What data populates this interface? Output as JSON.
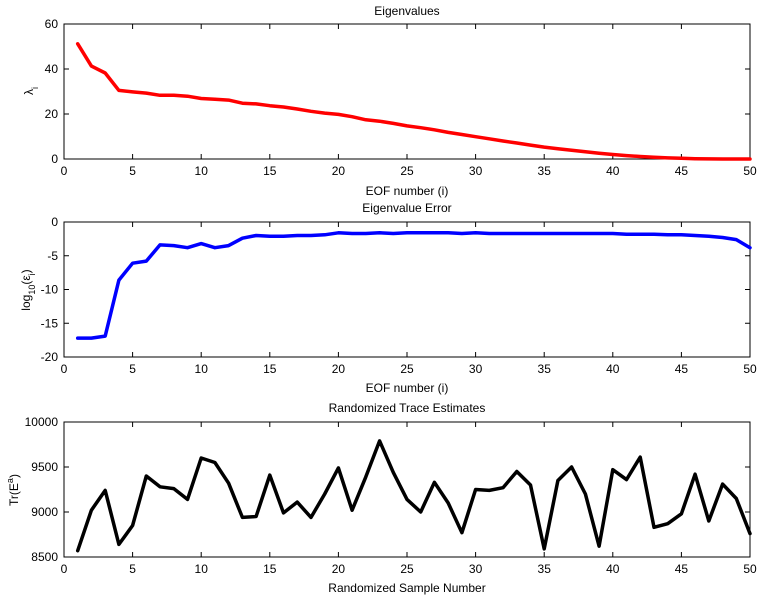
{
  "chart_data": [
    {
      "type": "line",
      "title": "Eigenvalues",
      "xlabel": "EOF number (i)",
      "ylabel": {
        "main": "λ",
        "sub": "i",
        "sup": ""
      },
      "xlim": [
        0,
        50
      ],
      "ylim": [
        0,
        60
      ],
      "xticks": [
        0,
        5,
        10,
        15,
        20,
        25,
        30,
        35,
        40,
        45,
        50
      ],
      "yticks": [
        0,
        20,
        40,
        60
      ],
      "grid": false,
      "series": [
        {
          "color": "#ff0000",
          "x": [
            1,
            2,
            3,
            4,
            5,
            6,
            7,
            8,
            9,
            10,
            11,
            12,
            13,
            14,
            15,
            16,
            17,
            18,
            19,
            20,
            21,
            22,
            23,
            24,
            25,
            26,
            27,
            28,
            29,
            30,
            31,
            32,
            33,
            34,
            35,
            36,
            37,
            38,
            39,
            40,
            41,
            42,
            43,
            44,
            45,
            46,
            47,
            48,
            49,
            50
          ],
          "values": [
            51.2,
            41.3,
            38.2,
            30.5,
            29.8,
            29.3,
            28.3,
            28.3,
            27.9,
            26.9,
            26.6,
            26.2,
            24.8,
            24.5,
            23.7,
            23.1,
            22.2,
            21.2,
            20.4,
            19.8,
            18.8,
            17.4,
            16.8,
            15.8,
            14.7,
            13.9,
            13.0,
            11.8,
            10.9,
            9.9,
            9.0,
            8.0,
            7.1,
            6.2,
            5.3,
            4.6,
            3.9,
            3.2,
            2.6,
            2.0,
            1.5,
            1.1,
            0.8,
            0.5,
            0.3,
            0.15,
            0.05,
            0.02,
            0.01,
            0.0
          ]
        }
      ]
    },
    {
      "type": "line",
      "title": "Eigenvalue Error",
      "xlabel": "EOF number (i)",
      "ylabel": {
        "main": "log",
        "sub": "10",
        "rest": "(ε",
        "sub2": "i",
        "close": ")"
      },
      "xlim": [
        0,
        50
      ],
      "ylim": [
        -20,
        0
      ],
      "xticks": [
        0,
        5,
        10,
        15,
        20,
        25,
        30,
        35,
        40,
        45,
        50
      ],
      "yticks": [
        -20,
        -15,
        -10,
        -5,
        0
      ],
      "grid": false,
      "series": [
        {
          "color": "#0000ff",
          "x": [
            1,
            2,
            3,
            4,
            5,
            6,
            7,
            8,
            9,
            10,
            11,
            12,
            13,
            14,
            15,
            16,
            17,
            18,
            19,
            20,
            21,
            22,
            23,
            24,
            25,
            26,
            27,
            28,
            29,
            30,
            31,
            32,
            33,
            34,
            35,
            36,
            37,
            38,
            39,
            40,
            41,
            42,
            43,
            44,
            45,
            46,
            47,
            48,
            49,
            50
          ],
          "values": [
            -17.2,
            -17.2,
            -16.9,
            -8.6,
            -6.1,
            -5.8,
            -3.4,
            -3.5,
            -3.8,
            -3.2,
            -3.8,
            -3.5,
            -2.4,
            -2.0,
            -2.1,
            -2.1,
            -2.0,
            -2.0,
            -1.9,
            -1.6,
            -1.7,
            -1.7,
            -1.6,
            -1.7,
            -1.6,
            -1.6,
            -1.6,
            -1.6,
            -1.7,
            -1.6,
            -1.7,
            -1.7,
            -1.7,
            -1.7,
            -1.7,
            -1.7,
            -1.7,
            -1.7,
            -1.7,
            -1.7,
            -1.8,
            -1.8,
            -1.8,
            -1.9,
            -1.9,
            -2.0,
            -2.1,
            -2.3,
            -2.6,
            -3.8
          ]
        }
      ]
    },
    {
      "type": "line",
      "title": "Randomized Trace Estimates",
      "xlabel": "Randomized Sample Number",
      "ylabel": {
        "main": "Tr(E",
        "sup": "a",
        "close": ")"
      },
      "xlim": [
        0,
        50
      ],
      "ylim": [
        8500,
        10000
      ],
      "xticks": [
        0,
        5,
        10,
        15,
        20,
        25,
        30,
        35,
        40,
        45,
        50
      ],
      "yticks": [
        8500,
        9000,
        9500,
        10000
      ],
      "grid": false,
      "series": [
        {
          "color": "#000000",
          "x": [
            1,
            2,
            3,
            4,
            5,
            6,
            7,
            8,
            9,
            10,
            11,
            12,
            13,
            14,
            15,
            16,
            17,
            18,
            19,
            20,
            21,
            22,
            23,
            24,
            25,
            26,
            27,
            28,
            29,
            30,
            31,
            32,
            33,
            34,
            35,
            36,
            37,
            38,
            39,
            40,
            41,
            42,
            43,
            44,
            45,
            46,
            47,
            48,
            49,
            50
          ],
          "values": [
            8570,
            9020,
            9240,
            8640,
            8850,
            9400,
            9280,
            9260,
            9140,
            9600,
            9550,
            9320,
            8940,
            8950,
            9410,
            8990,
            9110,
            8940,
            9200,
            9490,
            9020,
            9390,
            9790,
            9440,
            9140,
            9000,
            9330,
            9100,
            8770,
            9250,
            9240,
            9270,
            9450,
            9300,
            8590,
            9350,
            9500,
            9200,
            8620,
            9470,
            9360,
            9610,
            8830,
            8870,
            8980,
            9420,
            8900,
            9310,
            9150,
            8760
          ]
        }
      ]
    }
  ]
}
